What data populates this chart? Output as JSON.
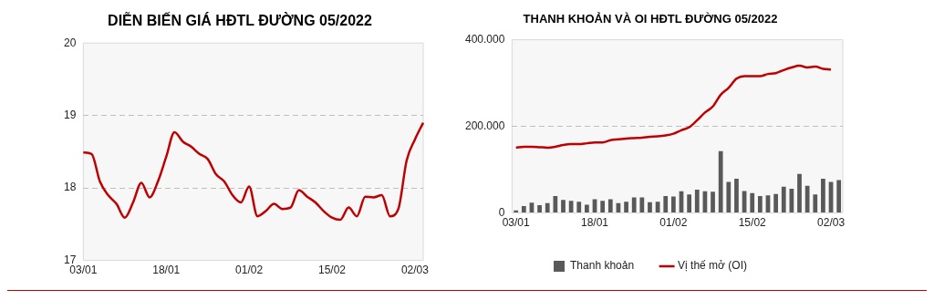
{
  "chart_data": [
    {
      "type": "line",
      "title": "DIỄN BIẾN GIÁ HĐTL ĐƯỜNG 05/2022",
      "categories": [
        "03/01",
        null,
        null,
        null,
        null,
        null,
        null,
        null,
        null,
        null,
        "18/01",
        null,
        null,
        null,
        null,
        null,
        null,
        null,
        null,
        null,
        "01/02",
        null,
        null,
        null,
        null,
        null,
        null,
        null,
        null,
        null,
        "15/02",
        null,
        null,
        null,
        null,
        null,
        null,
        null,
        null,
        null,
        "02/03",
        null
      ],
      "series": [
        {
          "color": "#c00000",
          "values": [
            18.49,
            18.47,
            18.09,
            17.9,
            17.78,
            17.59,
            17.8,
            18.07,
            17.87,
            18.09,
            18.43,
            18.77,
            18.64,
            18.57,
            18.47,
            18.4,
            18.19,
            18.09,
            17.9,
            17.8,
            18.02,
            17.61,
            17.68,
            17.78,
            17.71,
            17.73,
            17.97,
            17.88,
            17.8,
            17.68,
            17.59,
            17.56,
            17.73,
            17.61,
            17.88,
            17.87,
            17.9,
            17.61,
            17.71,
            18.38,
            18.67,
            18.9
          ]
        }
      ],
      "ylim": [
        17,
        20
      ],
      "yticks": [
        17,
        18,
        19,
        20
      ],
      "grid": "y",
      "legend": false
    },
    {
      "type": "bar",
      "title": "THANH KHOẢN VÀ OI HĐTL ĐƯỜNG 05/2022",
      "categories": [
        "03/01",
        null,
        null,
        null,
        null,
        null,
        null,
        null,
        null,
        null,
        "18/01",
        null,
        null,
        null,
        null,
        null,
        null,
        null,
        null,
        null,
        "01/02",
        null,
        null,
        null,
        null,
        null,
        null,
        null,
        null,
        null,
        "15/02",
        null,
        null,
        null,
        null,
        null,
        null,
        null,
        null,
        null,
        "02/03",
        null
      ],
      "series": [
        {
          "name": "Thanh khoản",
          "type": "bar",
          "color": "#595959",
          "values": [
            6000,
            16000,
            24000,
            18000,
            23000,
            39000,
            30000,
            28000,
            26000,
            19000,
            32000,
            28000,
            32000,
            23000,
            26000,
            36000,
            36000,
            25000,
            26000,
            39000,
            38000,
            50000,
            43000,
            54000,
            50000,
            49000,
            143000,
            72000,
            79000,
            51000,
            46000,
            39000,
            41000,
            44000,
            61000,
            56000,
            90000,
            63000,
            43000,
            79000,
            72000,
            76000
          ]
        },
        {
          "name": "Vị thế mở (OI)",
          "type": "line",
          "color": "#c00000",
          "values": [
            151000,
            153000,
            153000,
            152000,
            151000,
            153000,
            157000,
            159000,
            159000,
            161000,
            163000,
            163000,
            168000,
            170000,
            172000,
            173000,
            174000,
            176000,
            177000,
            179000,
            183000,
            191000,
            198000,
            214000,
            232000,
            246000,
            273000,
            289000,
            310000,
            316000,
            316000,
            316000,
            321000,
            323000,
            330000,
            336000,
            340000,
            336000,
            338000,
            333000,
            331000,
            null
          ]
        }
      ],
      "ylim": [
        0,
        400000
      ],
      "yticks": [
        {
          "value": 0,
          "label": "0"
        },
        {
          "value": 200000,
          "label": "200.000"
        },
        {
          "value": 400000,
          "label": "400.000"
        }
      ],
      "grid": "y",
      "legend": "bottom"
    }
  ]
}
